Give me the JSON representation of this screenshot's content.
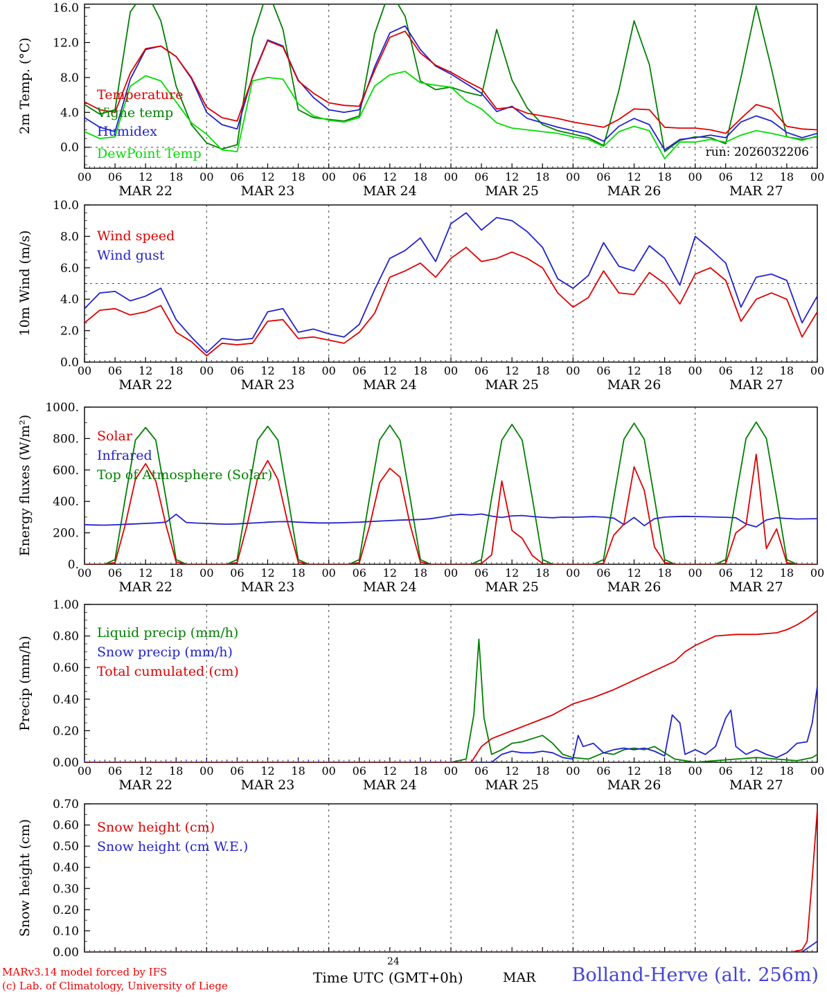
{
  "meta": {
    "run_label": "run: 2026032206",
    "footer_left_line1": "MARv3.14 model forced by IFS",
    "footer_left_line2": "(c) Lab. of Climatology, University of Liege",
    "footer_last_tick": "24",
    "x_axis_title": "Time UTC (GMT+0h)",
    "month_label": "MAR",
    "station_title": "Bolland-Herve (alt. 256m)"
  },
  "colors": {
    "red": "#dd0000",
    "dark_green": "#007f00",
    "blue": "#2222cc",
    "light_green": "#00dd00",
    "footer_red": "#ee0000",
    "station_blue": "#4444d4"
  },
  "x_axis": {
    "total_hours": 144,
    "major_step": 6,
    "minor_step": 1,
    "hour_labels": [
      "00",
      "06",
      "12",
      "18"
    ],
    "end_label": "00",
    "day_labels": [
      "MAR 22",
      "MAR 23",
      "MAR 24",
      "MAR 25",
      "MAR 26",
      "MAR 27"
    ]
  },
  "chart_data": [
    {
      "type": "line",
      "title": "2m Temperature",
      "ylabel": "2m Temp. (°C)",
      "ylim": [
        -2.4,
        16.4
      ],
      "yticks": [
        0,
        4,
        8,
        12,
        16
      ],
      "ytick_labels": [
        "0.0",
        "4.0",
        "8.0",
        "12.0",
        "16.0"
      ],
      "y_minor_step": 1,
      "dashed_hline": 0,
      "show_x_labels": true,
      "x_step_hours": 3,
      "series": [
        {
          "label": "Temperature",
          "color": "#dd0000",
          "values": [
            5.2,
            4.3,
            4.0,
            8.5,
            11.3,
            11.6,
            10.4,
            8.0,
            4.6,
            3.4,
            3.0,
            8.0,
            12.2,
            11.5,
            7.6,
            6.2,
            5.1,
            4.8,
            4.7,
            8.8,
            12.6,
            13.3,
            10.8,
            9.4,
            8.6,
            7.6,
            6.7,
            4.4,
            4.6,
            3.9,
            3.6,
            3.3,
            2.9,
            2.6,
            2.3,
            3.2,
            4.4,
            4.3,
            2.3,
            2.2,
            2.2,
            2.0,
            1.6,
            3.3,
            4.9,
            4.4,
            2.4,
            2.1,
            2.0
          ]
        },
        {
          "label": "Vigne temp",
          "color": "#007f00",
          "values": [
            4.9,
            3.8,
            4.3,
            15.5,
            18.0,
            14.5,
            7.0,
            2.6,
            0.5,
            -0.2,
            0.3,
            12.5,
            18.0,
            13.5,
            4.3,
            3.4,
            3.2,
            3.0,
            3.6,
            13.0,
            18.0,
            15.0,
            7.6,
            6.6,
            6.9,
            6.3,
            5.9,
            13.5,
            7.7,
            4.5,
            2.6,
            1.9,
            1.5,
            1.1,
            0.2,
            6.5,
            14.5,
            9.5,
            -0.5,
            0.8,
            1.2,
            1.1,
            0.4,
            8.0,
            16.2,
            9.0,
            1.2,
            0.9,
            1.2
          ]
        },
        {
          "label": "Humidex",
          "color": "#2222cc",
          "values": [
            3.4,
            2.3,
            1.8,
            7.8,
            11.2,
            11.6,
            10.4,
            7.9,
            4.0,
            2.6,
            2.1,
            8.1,
            12.3,
            11.6,
            7.7,
            5.7,
            4.3,
            4.0,
            4.3,
            9.2,
            13.1,
            13.9,
            11.2,
            9.3,
            8.4,
            7.3,
            6.2,
            4.1,
            4.7,
            3.3,
            2.8,
            2.3,
            1.9,
            1.5,
            0.7,
            2.4,
            3.3,
            2.6,
            -0.3,
            0.9,
            1.1,
            1.4,
            1.1,
            2.9,
            3.6,
            3.0,
            1.7,
            1.1,
            1.6
          ]
        },
        {
          "label": "DewPoint Temp",
          "color": "#00dd00",
          "values": [
            1.8,
            1.0,
            1.2,
            7.0,
            8.2,
            7.6,
            5.2,
            2.8,
            1.5,
            -0.3,
            -0.5,
            7.6,
            8.0,
            7.8,
            5.0,
            3.6,
            3.1,
            2.9,
            3.4,
            7.0,
            8.3,
            8.7,
            7.4,
            7.1,
            6.9,
            5.3,
            4.4,
            2.8,
            2.2,
            2.0,
            1.8,
            1.6,
            1.2,
            0.9,
            0.1,
            1.8,
            2.4,
            1.9,
            -1.3,
            0.6,
            0.6,
            0.9,
            0.6,
            1.4,
            1.9,
            1.6,
            1.2,
            0.8,
            1.3
          ]
        }
      ]
    },
    {
      "type": "line",
      "title": "10m Wind",
      "ylabel": "10m Wind (m/s)",
      "ylim": [
        0,
        10
      ],
      "yticks": [
        0,
        2,
        4,
        6,
        8,
        10
      ],
      "ytick_labels": [
        "0.0",
        "2.0",
        "4.0",
        "6.0",
        "8.0",
        "10.0"
      ],
      "y_minor_step": 0.5,
      "dashed_hline": 5,
      "show_x_labels": true,
      "x_step_hours": 3,
      "series": [
        {
          "label": "Wind speed",
          "color": "#dd0000",
          "values": [
            2.5,
            3.3,
            3.4,
            3.0,
            3.2,
            3.6,
            1.9,
            1.3,
            0.4,
            1.2,
            1.1,
            1.2,
            2.6,
            2.7,
            1.5,
            1.6,
            1.4,
            1.2,
            1.9,
            3.1,
            5.4,
            5.8,
            6.3,
            5.4,
            6.6,
            7.3,
            6.4,
            6.6,
            7.0,
            6.6,
            6.0,
            4.4,
            3.5,
            4.1,
            5.8,
            4.4,
            4.3,
            5.7,
            5.0,
            3.7,
            5.6,
            6.0,
            5.2,
            2.6,
            4.0,
            4.4,
            4.0,
            1.6,
            3.2
          ]
        },
        {
          "label": "Wind gust",
          "color": "#2222cc",
          "values": [
            3.4,
            4.4,
            4.5,
            3.9,
            4.2,
            4.7,
            2.7,
            1.6,
            0.6,
            1.5,
            1.4,
            1.5,
            3.2,
            3.4,
            1.9,
            2.1,
            1.8,
            1.6,
            2.4,
            4.6,
            6.6,
            7.1,
            7.9,
            6.4,
            8.8,
            9.5,
            8.4,
            9.2,
            9.0,
            8.3,
            7.3,
            5.3,
            4.7,
            5.5,
            7.6,
            6.1,
            5.8,
            7.4,
            6.6,
            4.9,
            8.0,
            7.2,
            6.3,
            3.5,
            5.4,
            5.6,
            5.2,
            2.5,
            4.2
          ]
        }
      ]
    },
    {
      "type": "line",
      "title": "Energy fluxes",
      "ylabel": "Energy fluxes (W/m²)",
      "ylim": [
        0,
        1000
      ],
      "yticks": [
        0,
        200,
        400,
        600,
        800,
        1000
      ],
      "ytick_labels": [
        "0.",
        "200.",
        "400.",
        "600.",
        "800.",
        "1000."
      ],
      "y_minor_step": 100,
      "dashed_hline": null,
      "show_x_labels": true,
      "x_step_hours": 2,
      "series": [
        {
          "label": "Solar",
          "color": "#dd0000",
          "values": [
            0,
            0,
            0,
            10,
            250,
            540,
            640,
            530,
            250,
            15,
            0,
            0,
            0,
            0,
            0,
            10,
            255,
            545,
            660,
            540,
            255,
            15,
            0,
            0,
            0,
            0,
            0,
            10,
            240,
            520,
            610,
            555,
            250,
            15,
            0,
            0,
            0,
            0,
            0,
            5,
            60,
            530,
            215,
            165,
            55,
            5,
            0,
            0,
            0,
            0,
            0,
            5,
            185,
            255,
            620,
            470,
            110,
            10,
            0,
            0,
            0,
            0,
            0,
            5,
            200,
            250,
            700,
            100,
            225,
            10,
            0,
            0,
            0
          ]
        },
        {
          "label": "Infrared",
          "color": "#2222cc",
          "values": [
            252,
            250,
            249,
            251,
            254,
            257,
            260,
            263,
            268,
            318,
            266,
            262,
            260,
            257,
            255,
            257,
            261,
            264,
            268,
            271,
            272,
            268,
            265,
            263,
            263,
            264,
            266,
            268,
            272,
            275,
            278,
            281,
            283,
            285,
            290,
            300,
            312,
            318,
            313,
            320,
            306,
            298,
            308,
            310,
            304,
            299,
            296,
            300,
            299,
            301,
            303,
            300,
            294,
            252,
            298,
            246,
            290,
            300,
            303,
            305,
            304,
            302,
            300,
            299,
            296,
            256,
            238,
            282,
            296,
            291,
            288,
            289,
            290
          ]
        },
        {
          "label": "Top of Atmosphere (Solar)",
          "color": "#007f00",
          "values": [
            0,
            0,
            0,
            30,
            420,
            790,
            870,
            790,
            420,
            30,
            0,
            0,
            0,
            0,
            0,
            30,
            420,
            790,
            878,
            790,
            420,
            30,
            0,
            0,
            0,
            0,
            0,
            30,
            420,
            790,
            885,
            790,
            420,
            30,
            0,
            0,
            0,
            0,
            0,
            30,
            420,
            790,
            890,
            790,
            420,
            30,
            0,
            0,
            0,
            0,
            0,
            30,
            420,
            795,
            898,
            795,
            420,
            30,
            0,
            0,
            0,
            0,
            0,
            30,
            425,
            800,
            905,
            800,
            425,
            30,
            0,
            0,
            0
          ]
        }
      ]
    },
    {
      "type": "line",
      "title": "Precipitation",
      "ylabel": "Precip (mm/h)",
      "ylim": [
        0,
        1.0
      ],
      "yticks": [
        0,
        0.2,
        0.4,
        0.6,
        0.8,
        1.0
      ],
      "ytick_labels": [
        "0.00",
        "0.20",
        "0.40",
        "0.60",
        "0.80",
        "1.00"
      ],
      "y_minor_step": 0.05,
      "dashed_hline": null,
      "show_x_labels": true,
      "x_step_hours": 3,
      "series": [
        {
          "label": "Liquid precip (mm/h)",
          "color": "#007f00",
          "x": [
            0,
            72,
            75,
            76.5,
            77.5,
            78.5,
            80,
            82,
            84,
            86,
            88,
            90,
            92,
            94,
            96,
            99,
            102,
            104,
            106,
            108,
            110,
            112,
            114,
            116,
            118,
            120,
            124,
            128,
            132,
            136,
            140,
            143,
            144
          ],
          "values": [
            0,
            0,
            0.02,
            0.3,
            0.78,
            0.28,
            0.05,
            0.08,
            0.12,
            0.13,
            0.15,
            0.17,
            0.12,
            0.05,
            0.03,
            0.02,
            0.06,
            0.05,
            0.08,
            0.09,
            0.08,
            0.1,
            0.06,
            0.02,
            0.01,
            0,
            0.01,
            0.02,
            0.03,
            0.02,
            0.01,
            0.03,
            0.05
          ]
        },
        {
          "label": "Snow precip (mm/h)",
          "color": "#2222cc",
          "zero_ticks_until": 76,
          "x": [
            0,
            80,
            82,
            84,
            86,
            88,
            90,
            92,
            94,
            96,
            97,
            98,
            100,
            102,
            104,
            106,
            108,
            110,
            112,
            114,
            115.5,
            117,
            118,
            120,
            122,
            124,
            126,
            127,
            128,
            130,
            132,
            134,
            136,
            138,
            140,
            142,
            143,
            144
          ],
          "values": [
            0,
            0,
            0.05,
            0.07,
            0.06,
            0.06,
            0.07,
            0.06,
            0.03,
            0.02,
            0.17,
            0.1,
            0.12,
            0.06,
            0.08,
            0.09,
            0.08,
            0.09,
            0.07,
            0.04,
            0.3,
            0.25,
            0.05,
            0.08,
            0.05,
            0.1,
            0.28,
            0.33,
            0.1,
            0.05,
            0.08,
            0.05,
            0.03,
            0.06,
            0.12,
            0.13,
            0.25,
            0.48
          ]
        },
        {
          "label": "Total cumulated (cm)",
          "color": "#dd0000",
          "x": [
            0,
            76,
            78,
            80,
            84,
            88,
            92,
            96,
            100,
            104,
            108,
            112,
            116,
            118,
            120,
            122,
            124,
            128,
            132,
            136,
            138,
            140,
            142,
            144
          ],
          "values": [
            0,
            0,
            0.1,
            0.15,
            0.2,
            0.25,
            0.3,
            0.37,
            0.41,
            0.46,
            0.52,
            0.58,
            0.64,
            0.7,
            0.74,
            0.77,
            0.8,
            0.81,
            0.81,
            0.82,
            0.84,
            0.87,
            0.91,
            0.96
          ]
        }
      ]
    },
    {
      "type": "line",
      "title": "Snow height",
      "ylabel": "Snow height (cm)",
      "ylim": [
        0,
        0.7
      ],
      "yticks": [
        0,
        0.1,
        0.2,
        0.3,
        0.4,
        0.5,
        0.6,
        0.7
      ],
      "ytick_labels": [
        "0.00",
        "0.10",
        "0.20",
        "0.30",
        "0.40",
        "0.50",
        "0.60",
        "0.70"
      ],
      "y_minor_step": 0.05,
      "dashed_hline": null,
      "show_x_labels": false,
      "x_step_hours": 3,
      "series": [
        {
          "label": "Snow height (cm)",
          "color": "#dd0000",
          "x": [
            0,
            139,
            141,
            142,
            143,
            144
          ],
          "values": [
            0,
            0,
            0.01,
            0.05,
            0.35,
            0.67
          ]
        },
        {
          "label": "Snow height (cm W.E.)",
          "color": "#2222cc",
          "x": [
            0,
            141,
            144
          ],
          "values": [
            0,
            0,
            0.05
          ]
        }
      ]
    }
  ]
}
